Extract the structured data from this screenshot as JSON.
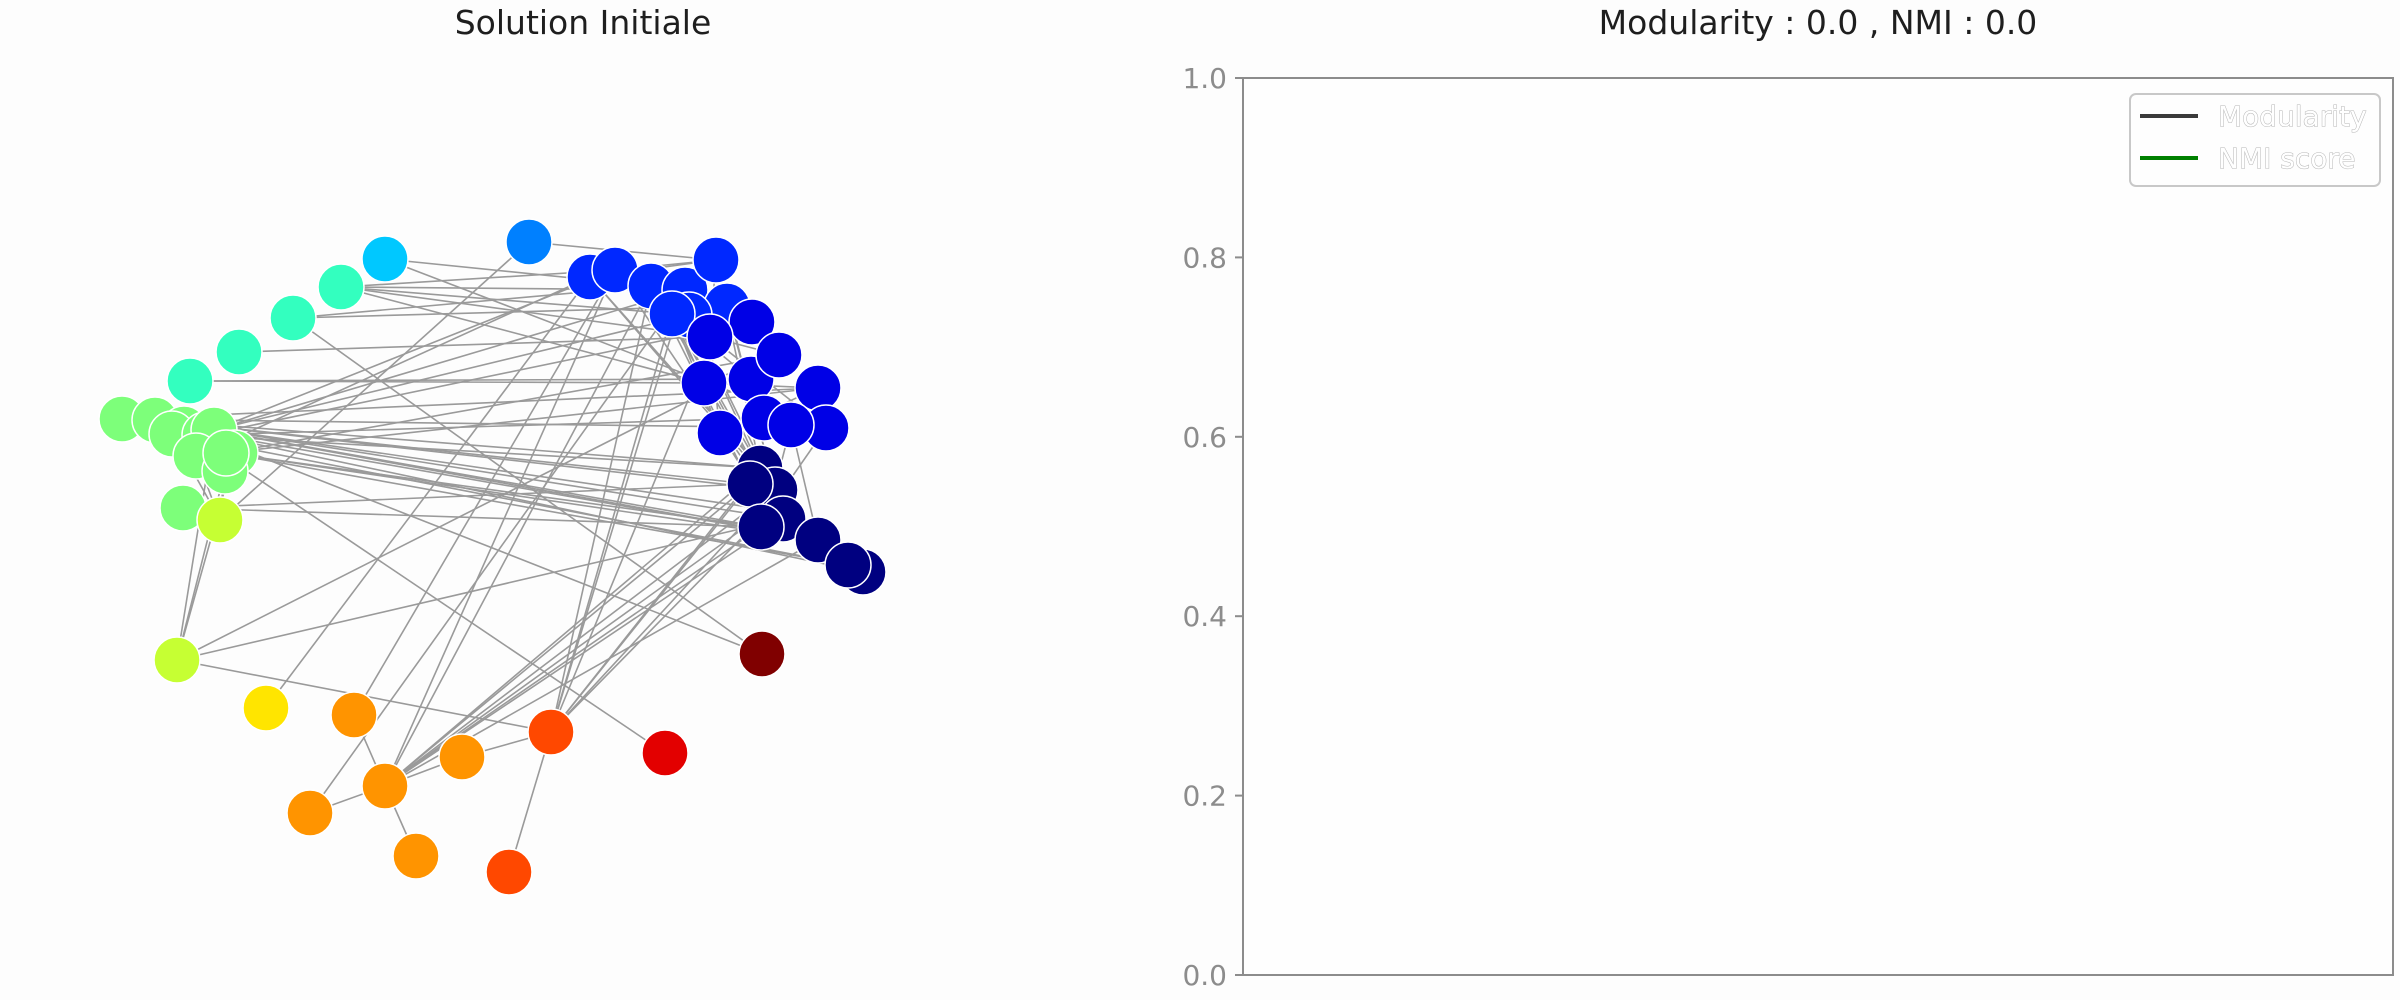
{
  "chart_data": [
    {
      "type": "network",
      "title": "Solution Initiale",
      "colormap": "jet",
      "edge_color": "#9a9a9a",
      "nodes": [
        {
          "id": 0,
          "color": "#0080ff"
        },
        {
          "id": 1,
          "color": "#00c8ff"
        },
        {
          "id": 2,
          "color": "#33ffbf"
        },
        {
          "id": 3,
          "color": "#33ffbf"
        },
        {
          "id": 4,
          "color": "#33ffbf"
        },
        {
          "id": 5,
          "color": "#33ffbf"
        },
        {
          "id": 6,
          "color": "#7dff7a"
        },
        {
          "id": 7,
          "color": "#7dff7a"
        },
        {
          "id": 8,
          "color": "#7dff7a"
        },
        {
          "id": 9,
          "color": "#7dff7a"
        },
        {
          "id": 10,
          "color": "#7dff7a"
        },
        {
          "id": 11,
          "color": "#7dff7a"
        },
        {
          "id": 12,
          "color": "#7dff7a"
        },
        {
          "id": 13,
          "color": "#7dff7a"
        },
        {
          "id": 14,
          "color": "#7dff7a"
        },
        {
          "id": 15,
          "color": "#7dff7a"
        },
        {
          "id": 16,
          "color": "#7dff7a"
        },
        {
          "id": 17,
          "color": "#c6ff33"
        },
        {
          "id": 18,
          "color": "#c6ff33"
        },
        {
          "id": 19,
          "color": "#ffe500"
        },
        {
          "id": 20,
          "color": "#ff9400"
        },
        {
          "id": 21,
          "color": "#ff9400"
        },
        {
          "id": 22,
          "color": "#ff9400"
        },
        {
          "id": 23,
          "color": "#ff9400"
        },
        {
          "id": 24,
          "color": "#ff9400"
        },
        {
          "id": 25,
          "color": "#ff4800"
        },
        {
          "id": 26,
          "color": "#ff4800"
        },
        {
          "id": 27,
          "color": "#e30000"
        },
        {
          "id": 28,
          "color": "#800000"
        },
        {
          "id": 29,
          "color": "#0028ff"
        },
        {
          "id": 30,
          "color": "#0028ff"
        },
        {
          "id": 31,
          "color": "#0028ff"
        },
        {
          "id": 32,
          "color": "#0028ff"
        },
        {
          "id": 33,
          "color": "#0028ff"
        },
        {
          "id": 34,
          "color": "#0028ff"
        },
        {
          "id": 35,
          "color": "#0028ff"
        },
        {
          "id": 36,
          "color": "#0028ff"
        },
        {
          "id": 37,
          "color": "#0000e6"
        },
        {
          "id": 38,
          "color": "#0000e6"
        },
        {
          "id": 39,
          "color": "#0000e6"
        },
        {
          "id": 40,
          "color": "#0000e6"
        },
        {
          "id": 41,
          "color": "#0000e6"
        },
        {
          "id": 42,
          "color": "#0000e6"
        },
        {
          "id": 43,
          "color": "#0000e6"
        },
        {
          "id": 44,
          "color": "#0000e6"
        },
        {
          "id": 45,
          "color": "#0000e6"
        },
        {
          "id": 46,
          "color": "#0000e6"
        },
        {
          "id": 47,
          "color": "#000080"
        },
        {
          "id": 48,
          "color": "#000080"
        },
        {
          "id": 49,
          "color": "#000080"
        },
        {
          "id": 50,
          "color": "#000080"
        },
        {
          "id": 51,
          "color": "#000080"
        },
        {
          "id": 52,
          "color": "#000080"
        },
        {
          "id": 53,
          "color": "#000080"
        },
        {
          "id": 54,
          "color": "#000080"
        },
        {
          "id": 55,
          "color": "#000080"
        }
      ],
      "edges": [
        [
          1,
          43
        ],
        [
          1,
          31
        ],
        [
          0,
          17
        ],
        [
          0,
          33
        ],
        [
          2,
          32
        ],
        [
          2,
          35
        ],
        [
          2,
          38
        ],
        [
          2,
          41
        ],
        [
          2,
          30
        ],
        [
          3,
          31
        ],
        [
          3,
          34
        ],
        [
          4,
          38
        ],
        [
          5,
          39
        ],
        [
          5,
          41
        ],
        [
          6,
          43
        ],
        [
          6,
          42
        ],
        [
          7,
          51
        ],
        [
          7,
          52
        ],
        [
          7,
          47
        ],
        [
          7,
          48
        ],
        [
          7,
          49
        ],
        [
          7,
          53
        ],
        [
          7,
          50
        ],
        [
          8,
          53
        ],
        [
          8,
          54
        ],
        [
          9,
          55
        ],
        [
          9,
          48
        ],
        [
          10,
          37
        ],
        [
          10,
          45
        ],
        [
          11,
          32
        ],
        [
          11,
          34
        ],
        [
          11,
          30
        ],
        [
          12,
          42
        ],
        [
          12,
          29
        ],
        [
          15,
          51
        ],
        [
          15,
          52
        ],
        [
          16,
          52
        ],
        [
          16,
          55
        ],
        [
          16,
          40
        ],
        [
          16,
          53
        ],
        [
          13,
          18
        ],
        [
          14,
          18
        ],
        [
          11,
          18
        ],
        [
          13,
          6
        ],
        [
          9,
          6
        ],
        [
          18,
          25
        ],
        [
          18,
          50
        ],
        [
          18,
          40
        ],
        [
          17,
          9
        ],
        [
          17,
          12
        ],
        [
          17,
          15
        ],
        [
          17,
          16
        ],
        [
          19,
          29
        ],
        [
          20,
          30
        ],
        [
          21,
          47
        ],
        [
          21,
          48
        ],
        [
          21,
          49
        ],
        [
          21,
          50
        ],
        [
          21,
          51
        ],
        [
          21,
          52
        ],
        [
          21,
          53
        ],
        [
          21,
          31
        ],
        [
          21,
          30
        ],
        [
          21,
          23
        ],
        [
          21,
          24
        ],
        [
          21,
          22
        ],
        [
          21,
          20
        ],
        [
          22,
          25
        ],
        [
          23,
          32
        ],
        [
          25,
          31
        ],
        [
          25,
          32
        ],
        [
          25,
          34
        ],
        [
          25,
          36
        ],
        [
          25,
          48
        ],
        [
          25,
          51
        ],
        [
          25,
          47
        ],
        [
          25,
          49
        ],
        [
          26,
          25
        ],
        [
          27,
          8
        ],
        [
          28,
          3
        ],
        [
          28,
          10
        ],
        [
          29,
          30
        ],
        [
          29,
          31
        ],
        [
          29,
          32
        ],
        [
          29,
          33
        ],
        [
          30,
          36
        ],
        [
          30,
          37
        ],
        [
          30,
          33
        ],
        [
          31,
          32
        ],
        [
          32,
          33
        ],
        [
          32,
          34
        ],
        [
          33,
          35
        ],
        [
          34,
          35
        ],
        [
          35,
          38
        ],
        [
          36,
          41
        ],
        [
          36,
          38
        ],
        [
          36,
          39
        ],
        [
          37,
          38
        ],
        [
          38,
          40
        ],
        [
          38,
          43
        ],
        [
          38,
          44
        ],
        [
          39,
          40
        ],
        [
          40,
          41
        ],
        [
          41,
          42
        ],
        [
          42,
          43
        ],
        [
          44,
          45
        ],
        [
          45,
          46
        ],
        [
          43,
          46
        ],
        [
          42,
          44
        ],
        [
          36,
          44
        ],
        [
          33,
          38
        ],
        [
          43,
          47
        ],
        [
          44,
          47
        ],
        [
          46,
          47
        ],
        [
          47,
          48
        ],
        [
          48,
          49
        ],
        [
          49,
          50
        ],
        [
          50,
          51
        ],
        [
          51,
          52
        ],
        [
          52,
          53
        ],
        [
          53,
          54
        ],
        [
          54,
          55
        ],
        [
          53,
          55
        ],
        [
          46,
          53
        ],
        [
          49,
          52
        ],
        [
          31,
          50
        ],
        [
          31,
          51
        ],
        [
          33,
          47
        ],
        [
          33,
          49
        ],
        [
          35,
          48
        ],
        [
          35,
          49
        ],
        [
          30,
          50
        ],
        [
          29,
          49
        ],
        [
          29,
          48
        ],
        [
          34,
          49
        ],
        [
          36,
          48
        ],
        [
          36,
          50
        ]
      ]
    },
    {
      "type": "line",
      "title": "Modularity : 0.0 , NMI :  0.0",
      "ylim": [
        0,
        1
      ],
      "yticks": [
        "0.0",
        "0.2",
        "0.4",
        "0.6",
        "0.8",
        "1.0"
      ],
      "legend_position": "top-right",
      "series": [
        {
          "name": "Modularity",
          "color": "#3a3a3a",
          "values": []
        },
        {
          "name": "NMI score",
          "color": "#008000",
          "values": []
        }
      ]
    }
  ]
}
